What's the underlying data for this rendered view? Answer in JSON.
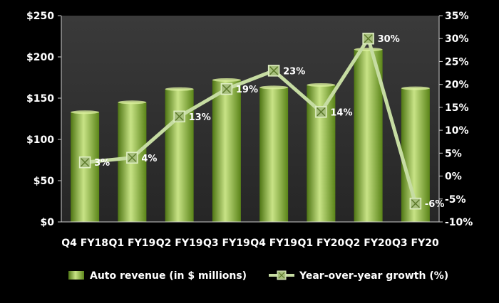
{
  "chart_data": {
    "type": "bar+line",
    "categories": [
      "Q4 FY18",
      "Q1 FY19",
      "Q2 FY19",
      "Q3 FY19",
      "Q4 FY19",
      "Q1 FY20",
      "Q2 FY20",
      "Q3 FY20"
    ],
    "series": [
      {
        "name": "Auto revenue (in $ millions)",
        "type": "bar",
        "axis": "left",
        "values": [
          133,
          145,
          161,
          172,
          163,
          166,
          209,
          162
        ]
      },
      {
        "name": "Year-over-year growth (%)",
        "type": "line",
        "axis": "right",
        "values": [
          3,
          4,
          13,
          19,
          23,
          14,
          30,
          -6
        ],
        "labels": [
          "3%",
          "4%",
          "13%",
          "19%",
          "23%",
          "14%",
          "30%",
          "-6%"
        ]
      }
    ],
    "y_left": {
      "range": [
        0,
        250
      ],
      "ticks": [
        "$0",
        "$50",
        "$100",
        "$150",
        "$200",
        "$250"
      ]
    },
    "y_right": {
      "range": [
        -10,
        35
      ],
      "ticks": [
        "-10%",
        "-5%",
        "0%",
        "5%",
        "10%",
        "15%",
        "20%",
        "25%",
        "30%",
        "35%"
      ]
    },
    "grid": false,
    "legend_position": "bottom",
    "colors": {
      "background": "#000000",
      "plot_area": "#2b2b2b",
      "bar_light": "#cde68a",
      "bar_dark": "#5f8a1a",
      "line": "#c6dca2",
      "marker_fill": "#a8c07e",
      "text": "#ffffff"
    }
  }
}
